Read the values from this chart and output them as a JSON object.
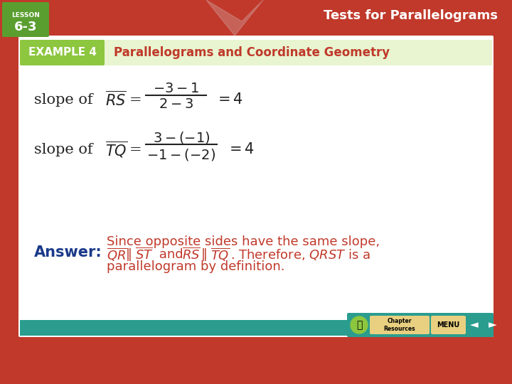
{
  "bg_color": "#c0392b",
  "slide_bg": "#ffffff",
  "header_bg": "#c0392b",
  "example_label_bg": "#8dc63f",
  "example_label_text": "EXAMPLE 4",
  "title_text": "Parallelograms and Coordinate Geometry",
  "title_color": "#c0392b",
  "lesson_label": "LESSON\n6-3",
  "header_right": "Tests for Parallelograms",
  "formula1_prefix": "slope of ",
  "formula1_segment": "RS",
  "formula1_eq": " = ",
  "formula1_num": "−3–1",
  "formula1_den": "2–3",
  "formula1_result": "= 4",
  "formula2_prefix": "slope of ",
  "formula2_segment": "TQ",
  "formula2_eq": " = ",
  "formula2_num": "3–(−1)",
  "formula2_den": "−1–(−2)",
  "formula2_result": "= 4",
  "answer_label": "Answer:",
  "answer_label_color": "#1a3a8a",
  "answer_text_line1": "Since opposite sides have the same slope,",
  "answer_text_line2_part1": "QR",
  "answer_text_line2_mid": "∥",
  "answer_text_line2_part2": "ST",
  "answer_text_line2_and": " and ",
  "answer_text_line2_part3": "RS",
  "answer_text_line2_mid2": "∥",
  "answer_text_line2_part4": "TQ",
  "answer_text_line2_end": ". Therefore,   QRST is a",
  "answer_text_line3": "parallelogram by definition.",
  "answer_text_color": "#c0392b",
  "main_text_color": "#222222",
  "teal_bar_color": "#2a9d8f",
  "green_label_color": "#8dc63f"
}
